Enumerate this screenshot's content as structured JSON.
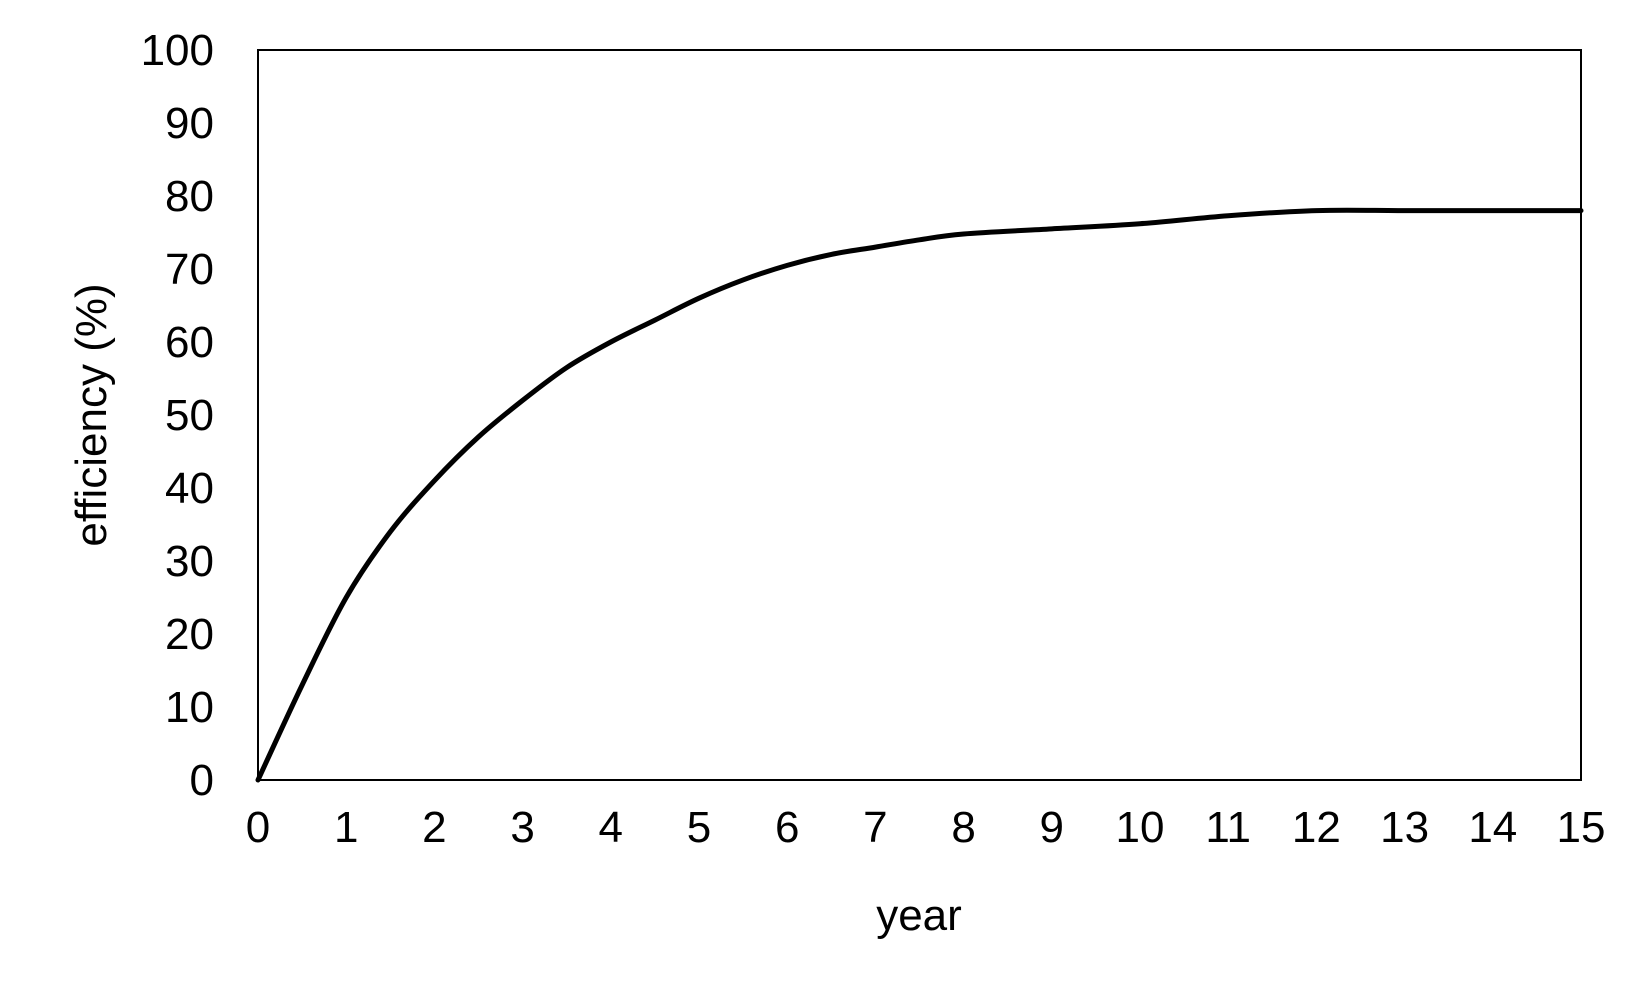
{
  "chart_data": {
    "type": "line",
    "title": "",
    "xlabel": "year",
    "ylabel": "efficiency (%)",
    "xlim": [
      0,
      15
    ],
    "ylim": [
      0,
      100
    ],
    "x_ticks": [
      "0",
      "1",
      "2",
      "3",
      "4",
      "5",
      "6",
      "7",
      "8",
      "9",
      "10",
      "11",
      "12",
      "13",
      "14",
      "15"
    ],
    "y_ticks": [
      "0",
      "10",
      "20",
      "30",
      "40",
      "50",
      "60",
      "70",
      "80",
      "90",
      "100"
    ],
    "grid": false,
    "legend": "none",
    "line_color": "#000000",
    "series": [
      {
        "x": [
          0,
          0.5,
          1,
          1.5,
          2,
          2.5,
          3,
          3.5,
          4,
          4.5,
          5,
          5.5,
          6,
          6.5,
          7,
          7.5,
          8,
          9,
          10,
          11,
          12,
          13,
          14,
          15
        ],
        "y": [
          0,
          13,
          25,
          34,
          41,
          47,
          52,
          56.5,
          60,
          63,
          66,
          68.5,
          70.5,
          72,
          73,
          74,
          74.8,
          75.5,
          76.2,
          77.3,
          78,
          78,
          78,
          78
        ]
      }
    ]
  }
}
